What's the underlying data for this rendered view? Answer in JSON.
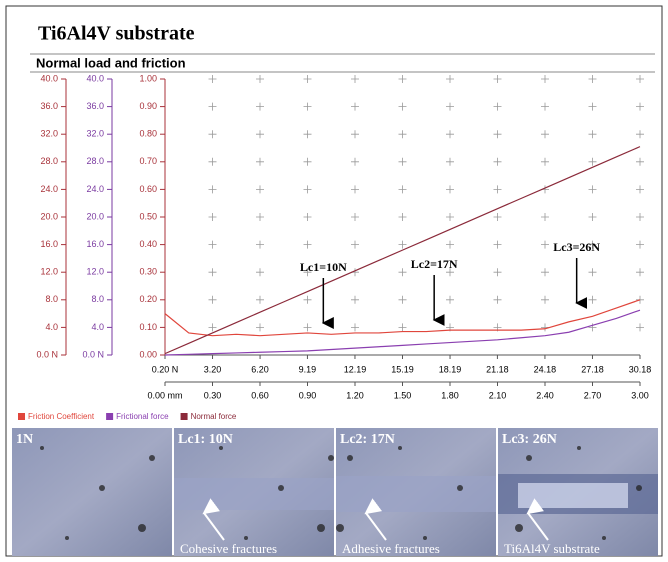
{
  "chart_data": {
    "type": "line",
    "title": "Ti6Al4V substrate",
    "subtitle": "Normal load and friction",
    "x": [
      0,
      0.15,
      0.3,
      0.45,
      0.6,
      0.75,
      0.9,
      1.05,
      1.2,
      1.35,
      1.5,
      1.65,
      1.8,
      1.95,
      2.1,
      2.25,
      2.4,
      2.55,
      2.7,
      2.85,
      3.0
    ],
    "series": [
      {
        "name": "Friction Coefficient",
        "color": "#e0463c",
        "axis": "y3",
        "values": [
          0.15,
          0.08,
          0.07,
          0.075,
          0.07,
          0.075,
          0.08,
          0.075,
          0.08,
          0.08,
          0.085,
          0.085,
          0.09,
          0.09,
          0.09,
          0.09,
          0.095,
          0.12,
          0.14,
          0.17,
          0.2
        ]
      },
      {
        "name": "Frictional force",
        "color": "#8a3fb0",
        "axis": "y2",
        "values": [
          0,
          0.1,
          0.2,
          0.3,
          0.4,
          0.5,
          0.6,
          0.8,
          1.0,
          1.2,
          1.4,
          1.6,
          1.8,
          2.0,
          2.2,
          2.5,
          2.8,
          3.3,
          4.3,
          5.3,
          6.5
        ]
      },
      {
        "name": "Normal force",
        "color": "#8b2a3a",
        "axis": "y",
        "values": [
          0.2,
          1.7,
          3.2,
          4.7,
          6.2,
          7.7,
          9.2,
          10.7,
          12.2,
          13.7,
          15.2,
          16.7,
          18.2,
          19.7,
          21.2,
          22.7,
          24.2,
          25.7,
          27.2,
          28.7,
          30.2
        ]
      }
    ],
    "xlim": [
      0,
      3
    ],
    "xticks": [
      {
        "value": 0,
        "label": "0.00 mm"
      },
      {
        "value": 0.3,
        "label": "0.30"
      },
      {
        "value": 0.6,
        "label": "0.60"
      },
      {
        "value": 0.9,
        "label": "0.90"
      },
      {
        "value": 1.2,
        "label": "1.20"
      },
      {
        "value": 1.5,
        "label": "1.50"
      },
      {
        "value": 1.8,
        "label": "1.80"
      },
      {
        "value": 2.1,
        "label": "2.10"
      },
      {
        "value": 2.4,
        "label": "2.40"
      },
      {
        "value": 2.7,
        "label": "2.70"
      },
      {
        "value": 3,
        "label": "3.00"
      }
    ],
    "x2lim": [
      0.2,
      30.18
    ],
    "x2ticks": [
      {
        "value": 0.2,
        "label": "0.20 N"
      },
      {
        "value": 3.2,
        "label": "3.20"
      },
      {
        "value": 6.2,
        "label": "6.20"
      },
      9.19,
      12.19,
      15.19,
      18.19,
      21.18,
      24.18,
      27.18,
      30.18
    ],
    "ylim": [
      0,
      40
    ],
    "yticks": [
      {
        "value": 0,
        "label": "0.0 N"
      },
      {
        "value": 4,
        "label": "4.0"
      },
      {
        "value": 8,
        "label": "8.0"
      },
      {
        "value": 12,
        "label": "12.0"
      },
      {
        "value": 16,
        "label": "16.0"
      },
      {
        "value": 20,
        "label": "20.0"
      },
      {
        "value": 24,
        "label": "24.0"
      },
      {
        "value": 28,
        "label": "28.0"
      },
      {
        "value": 32,
        "label": "32.0"
      },
      {
        "value": 36,
        "label": "36.0"
      },
      {
        "value": 40,
        "label": "40.0"
      }
    ],
    "y2lim": [
      0,
      40
    ],
    "y2ticks": [
      {
        "value": 0,
        "label": "0.0 N"
      },
      {
        "value": 4,
        "label": "4.0"
      },
      {
        "value": 8,
        "label": "8.0"
      },
      {
        "value": 12,
        "label": "12.0"
      },
      {
        "value": 16,
        "label": "16.0"
      },
      {
        "value": 20,
        "label": "20.0"
      },
      {
        "value": 24,
        "label": "24.0"
      },
      {
        "value": 28,
        "label": "28.0"
      },
      {
        "value": 32,
        "label": "32.0"
      },
      {
        "value": 36,
        "label": "36.0"
      },
      {
        "value": 40,
        "label": "40.0"
      }
    ],
    "y3lim": [
      0,
      1
    ],
    "y3ticks": [
      {
        "value": 0,
        "label": "0.00"
      },
      {
        "value": 0.1,
        "label": "0.10"
      },
      {
        "value": 0.2,
        "label": "0.20"
      },
      {
        "value": 0.3,
        "label": "0.30"
      },
      {
        "value": 0.4,
        "label": "0.40"
      },
      {
        "value": 0.5,
        "label": "0.50"
      },
      {
        "value": 0.6,
        "label": "0.60"
      },
      {
        "value": 0.7,
        "label": "0.70"
      },
      {
        "value": 0.8,
        "label": "0.80"
      },
      {
        "value": 0.9,
        "label": "0.90"
      },
      {
        "value": 1,
        "label": "1.00"
      }
    ],
    "grid": true,
    "annotations": [
      {
        "text": "Lc1=10N",
        "x": 1.0
      },
      {
        "text": "Lc2=17N",
        "x": 1.7
      },
      {
        "text": "Lc3=26N",
        "x": 2.6
      }
    ]
  },
  "micrographs": [
    {
      "label": "1N"
    },
    {
      "label": "Lc1: 10N",
      "caption": "Cohesive fractures"
    },
    {
      "label": "Lc2: 17N",
      "caption": "Adhesive fractures"
    },
    {
      "label": "Lc3: 26N",
      "caption": "Ti6Al4V substrate"
    }
  ]
}
